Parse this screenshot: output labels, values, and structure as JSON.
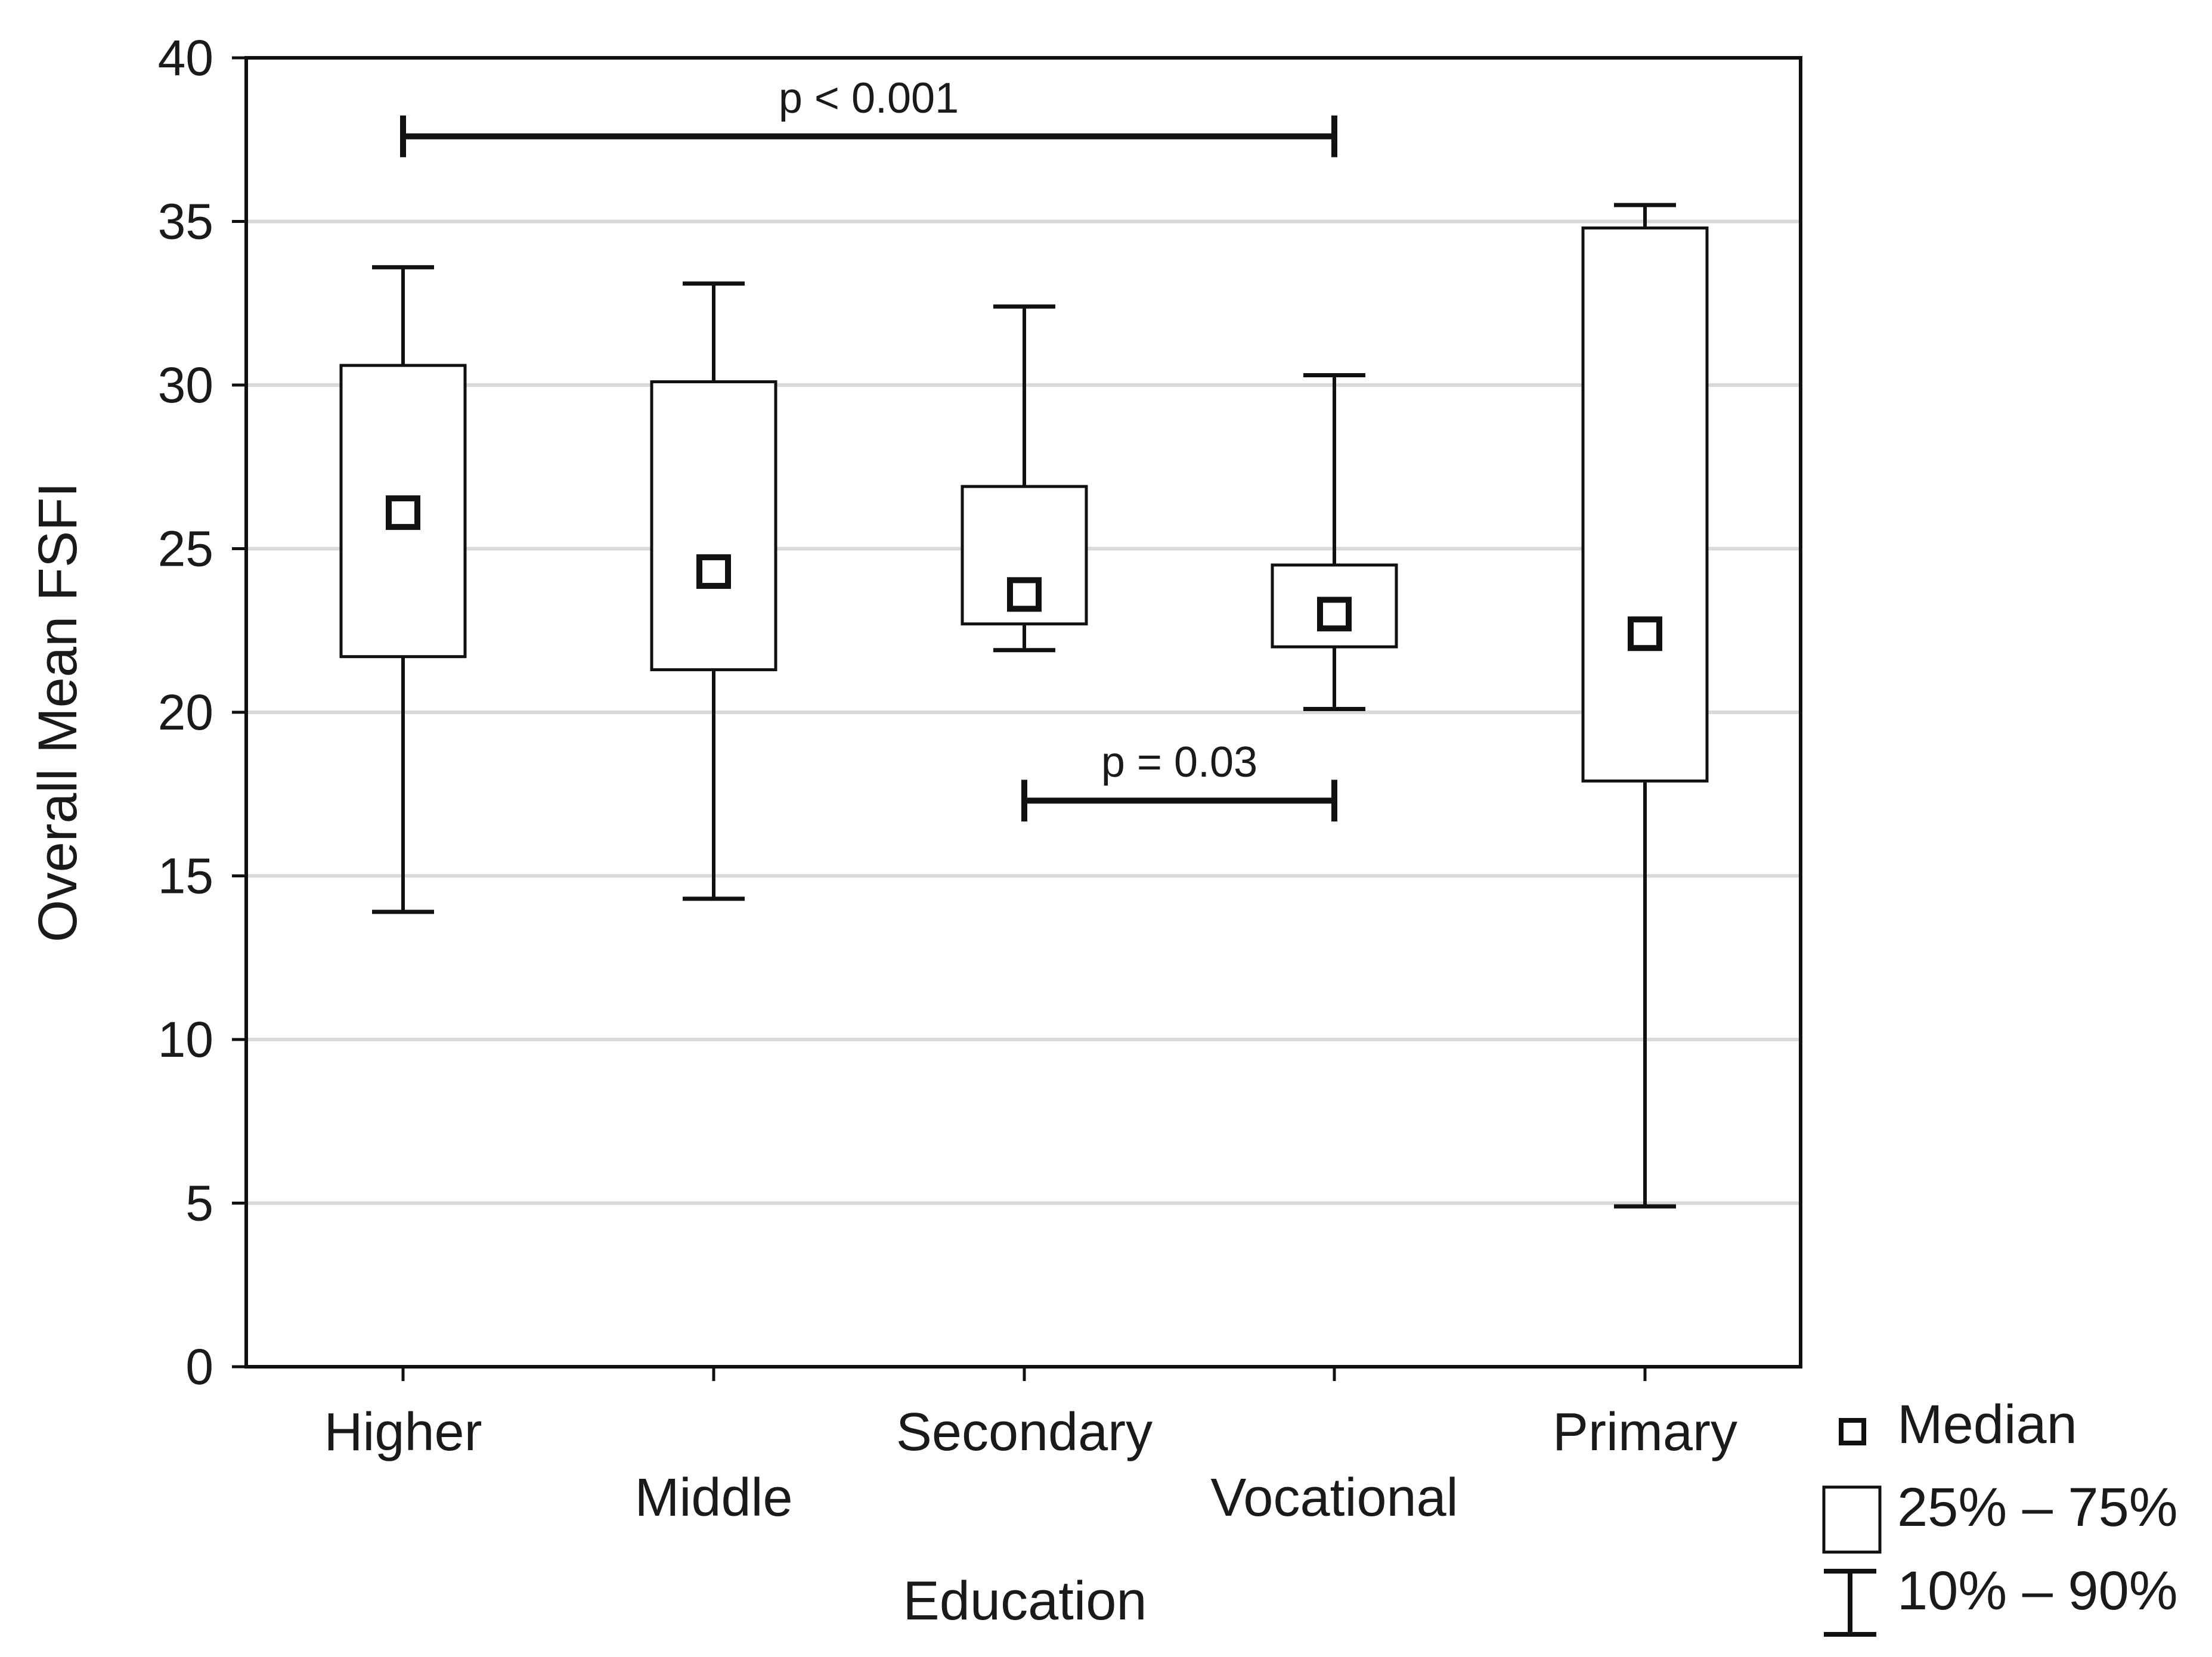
{
  "chart_data": {
    "type": "box",
    "xlabel": "Education",
    "ylabel": "Overall Mean FSFI",
    "ylim": [
      0,
      40
    ],
    "yticks": [
      0,
      5,
      10,
      15,
      20,
      25,
      30,
      35,
      40
    ],
    "grid": "horizontal",
    "categories": [
      "Higher",
      "Middle",
      "Secondary",
      "Vocational",
      "Primary"
    ],
    "boxes": [
      {
        "category": "Higher",
        "median": 26.1,
        "q1": 21.7,
        "q3": 30.6,
        "p10": 13.9,
        "p90": 33.6
      },
      {
        "category": "Middle",
        "median": 24.3,
        "q1": 21.3,
        "q3": 30.1,
        "p10": 14.3,
        "p90": 33.1
      },
      {
        "category": "Secondary",
        "median": 23.6,
        "q1": 22.7,
        "q3": 26.9,
        "p10": 21.9,
        "p90": 32.4
      },
      {
        "category": "Vocational",
        "median": 23.0,
        "q1": 22.0,
        "q3": 24.5,
        "p10": 20.1,
        "p90": 30.3
      },
      {
        "category": "Primary",
        "median": 22.4,
        "q1": 17.9,
        "q3": 34.8,
        "p10": 4.9,
        "p90": 35.5
      }
    ],
    "annotations": [
      {
        "from": "Higher",
        "to": "Vocational",
        "y": 37.6,
        "label": "p < 0.001"
      },
      {
        "from": "Secondary",
        "to": "Vocational",
        "y": 17.3,
        "label": "p = 0.03"
      }
    ],
    "legend": {
      "position": "bottom-right",
      "items": [
        {
          "symbol": "median",
          "label": "Median"
        },
        {
          "symbol": "box",
          "label": "25% – 75%"
        },
        {
          "symbol": "whisker",
          "label": "10% – 90%"
        }
      ]
    },
    "colors": {
      "line": "#111111",
      "grid": "#d9d9d9",
      "fill": "#ffffff"
    }
  }
}
